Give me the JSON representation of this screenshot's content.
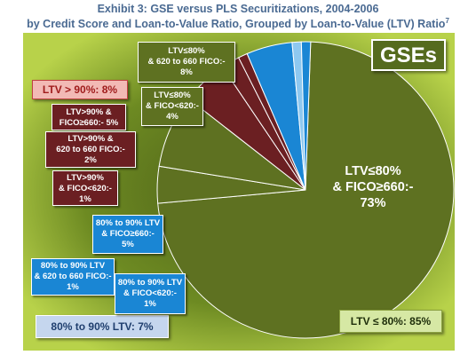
{
  "title": {
    "line1": "Exhibit 3: GSE versus PLS Securitizations, 2004-2006",
    "line2": "by Credit Score and Loan-to-Value Ratio, Grouped by Loan-to-Value (LTV) Ratio",
    "superscript": "7"
  },
  "badges": {
    "gses": "GSEs",
    "ltv_gt_90": "LTV > 90%: 8%",
    "ltv_80_90": "80% to 90% LTV: 7%",
    "ltv_le_80": "LTV ≤ 80%: 85%"
  },
  "labels": {
    "g1": [
      "LTV≤80%",
      "& 620 to 660 FICO:-",
      "8%"
    ],
    "g2": [
      "LTV≤80%",
      "& FICO<620:-",
      "4%"
    ],
    "g_main": [
      "LTV≤80%",
      "& FICO≥660:-",
      "73%"
    ],
    "m1": [
      "LTV>90% &",
      "FICO≥660:- 5%"
    ],
    "m2": [
      "LTV>90% &",
      "620 to 660 FICO:-",
      "2%"
    ],
    "m3": [
      "LTV>90%",
      "& FICO<620:-",
      "1%"
    ],
    "b1": [
      "80% to 90% LTV",
      "& FICO≥660:-",
      "5%"
    ],
    "b2": [
      "80% to 90% LTV",
      "& 620 to 660 FICO:-",
      "1%"
    ],
    "b3": [
      "80% to 90% LTV",
      "& FICO<620:-",
      "1%"
    ]
  },
  "colors": {
    "background_outer": "#b8d24a",
    "background_inner": "#4e6119",
    "ltv_le_80": "#5e7121",
    "ltv_gt_90": "#6b1f22",
    "ltv_80_90": "#1a86d4",
    "ltv_80_90_light": "#8ec8f0",
    "title": "#4a6a92",
    "gses_badge_bg": "#556b1e",
    "gses_badge_text": "#ffffff",
    "ltv_gt_90_badge_bg": "#f2b9b5",
    "ltv_gt_90_badge_text": "#a01c1c",
    "ltv_80_90_badge_bg": "#c5d6ee",
    "ltv_80_90_badge_text": "#1f3e6e",
    "ltv_le_80_badge_bg": "#d6e8a4",
    "ltv_le_80_badge_text": "#1e2e0a"
  },
  "chart_data": {
    "type": "pie",
    "title": "Exhibit 3: GSE versus PLS Securitizations, 2004-2006 by Credit Score and Loan-to-Value Ratio, Grouped by Loan-to-Value (LTV) Ratio",
    "subtitle": "GSEs",
    "unit": "%",
    "slices": [
      {
        "name": "LTV≤80% & FICO≥660",
        "value": 73,
        "group": "LTV ≤ 80%",
        "color": "#5e7121"
      },
      {
        "name": "LTV≤80% & FICO<620",
        "value": 4,
        "group": "LTV ≤ 80%",
        "color": "#5e7121"
      },
      {
        "name": "LTV≤80% & 620 to 660 FICO",
        "value": 8,
        "group": "LTV ≤ 80%",
        "color": "#5e7121"
      },
      {
        "name": "LTV>90% & FICO≥660",
        "value": 5,
        "group": "LTV > 90%",
        "color": "#6b1f22"
      },
      {
        "name": "LTV>90% & 620 to 660 FICO",
        "value": 2,
        "group": "LTV > 90%",
        "color": "#6b1f22"
      },
      {
        "name": "LTV>90% & FICO<620",
        "value": 1,
        "group": "LTV > 90%",
        "color": "#6b1f22"
      },
      {
        "name": "80% to 90% LTV & FICO≥660",
        "value": 5,
        "group": "80% to 90% LTV",
        "color": "#1a86d4"
      },
      {
        "name": "80% to 90% LTV & 620 to 660 FICO",
        "value": 1,
        "group": "80% to 90% LTV",
        "color": "#8ec8f0"
      },
      {
        "name": "80% to 90% LTV & FICO<620",
        "value": 1,
        "group": "80% to 90% LTV",
        "color": "#1a86d4"
      }
    ],
    "groups": [
      {
        "name": "LTV ≤ 80%",
        "value": 85
      },
      {
        "name": "LTV > 90%",
        "value": 8
      },
      {
        "name": "80% to 90% LTV",
        "value": 7
      }
    ]
  }
}
